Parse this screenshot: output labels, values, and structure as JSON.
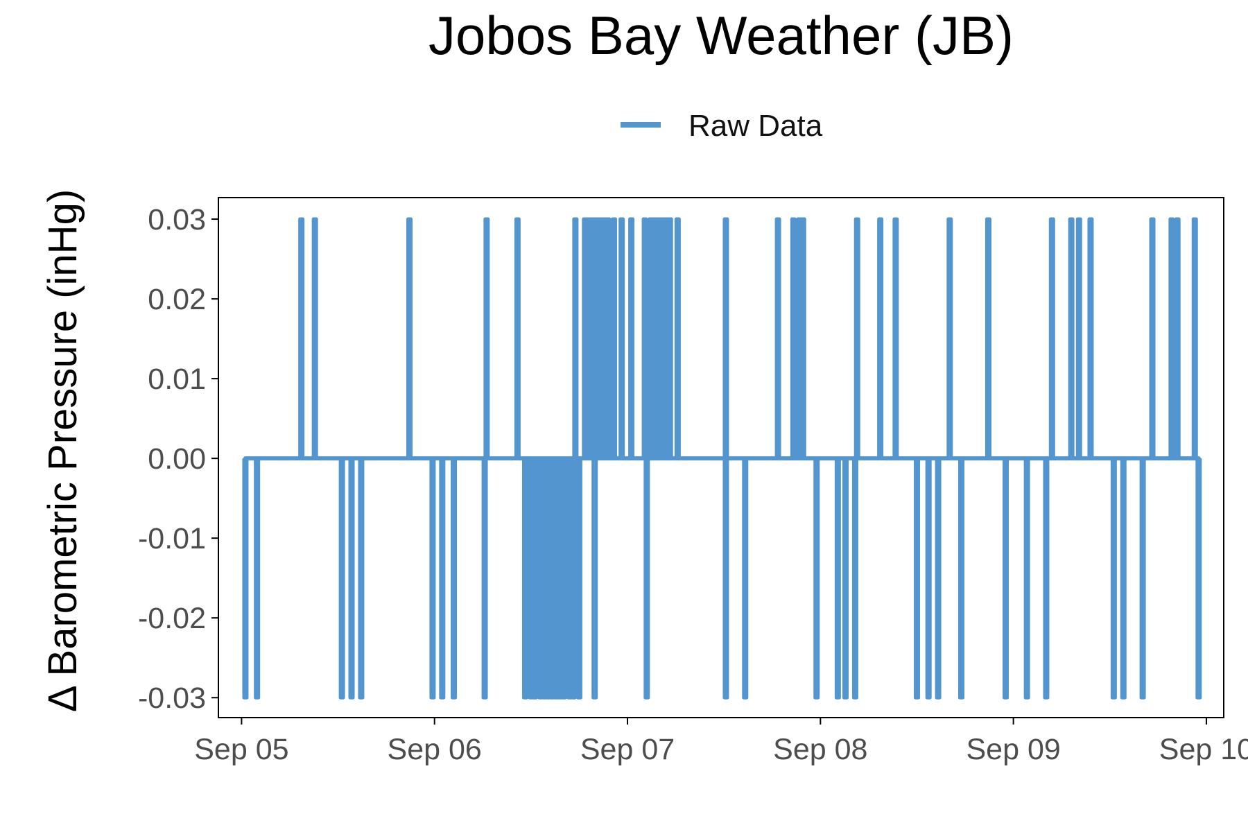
{
  "chart_data": {
    "type": "line",
    "title": "Jobos Bay Weather (JB)",
    "xlabel": "",
    "ylabel": "Δ Barometric Pressure (inHg)",
    "legend": {
      "position": "top",
      "entries": [
        "Raw Data"
      ]
    },
    "grid": false,
    "colors": {
      "series": "#5295cf",
      "axis": "#000000",
      "tick_label": "#4d4d4d"
    },
    "x_ticks": [
      {
        "label": "Sep 05",
        "value": 0
      },
      {
        "label": "Sep 06",
        "value": 1
      },
      {
        "label": "Sep 07",
        "value": 2
      },
      {
        "label": "Sep 08",
        "value": 3
      },
      {
        "label": "Sep 09",
        "value": 4
      },
      {
        "label": "Sep 10",
        "value": 5
      }
    ],
    "y_ticks": [
      {
        "label": "0.03",
        "value": 0.03
      },
      {
        "label": "0.02",
        "value": 0.02
      },
      {
        "label": "0.01",
        "value": 0.01
      },
      {
        "label": "0.00",
        "value": 0.0
      },
      {
        "label": "-0.01",
        "value": -0.01
      },
      {
        "label": "-0.02",
        "value": -0.02
      },
      {
        "label": "-0.03",
        "value": -0.03
      }
    ],
    "xlim_days": [
      -0.12,
      5.09
    ],
    "ylim": [
      -0.0325,
      0.0327
    ],
    "x_unit": "days since Sep 05",
    "series": [
      {
        "name": "Raw Data",
        "baseline": 0.0,
        "positive_spikes": {
          "value": 0.03,
          "days": [
            0.31,
            0.38,
            0.87,
            1.27,
            1.43,
            1.73,
            1.78,
            1.8,
            1.82,
            1.84,
            1.86,
            1.88,
            1.9,
            1.93,
            1.97,
            2.02,
            2.09,
            2.12,
            2.14,
            2.16,
            2.18,
            2.2,
            2.22,
            2.26,
            2.51,
            2.78,
            2.86,
            2.89,
            2.91,
            3.19,
            3.31,
            3.39,
            3.67,
            3.87,
            4.2,
            4.3,
            4.34,
            4.4,
            4.72,
            4.82,
            4.85,
            4.94
          ]
        },
        "negative_spikes": {
          "value": -0.03,
          "days": [
            0.02,
            0.08,
            0.52,
            0.57,
            0.62,
            0.99,
            1.04,
            1.1,
            1.26,
            1.47,
            1.5,
            1.52,
            1.55,
            1.57,
            1.59,
            1.61,
            1.63,
            1.65,
            1.67,
            1.7,
            1.72,
            1.75,
            1.83,
            2.1,
            2.51,
            2.61,
            2.98,
            3.09,
            3.13,
            3.18,
            3.5,
            3.56,
            3.61,
            3.73,
            3.96,
            4.07,
            4.17,
            4.52,
            4.57,
            4.67,
            4.96
          ]
        }
      }
    ]
  }
}
